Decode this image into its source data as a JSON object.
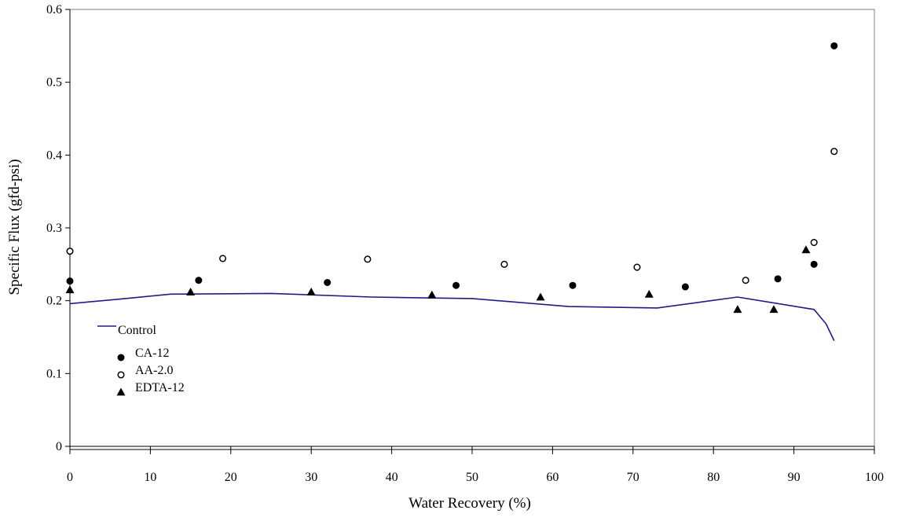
{
  "chart_data": {
    "type": "scatter",
    "title": "",
    "xlabel": "Water Recovery (%)",
    "ylabel": "Specific Flux (gfd-psi)",
    "xlim": [
      0,
      100
    ],
    "ylim": [
      0,
      0.6
    ],
    "xticks": [
      0,
      10,
      20,
      30,
      40,
      50,
      60,
      70,
      80,
      90,
      100
    ],
    "yticks": [
      0,
      0.1,
      0.2,
      0.3,
      0.4,
      0.5,
      0.6
    ],
    "x_tick_labels": [
      "0",
      "10",
      "20",
      "30",
      "40",
      "50",
      "60",
      "70",
      "80",
      "90",
      "100"
    ],
    "y_tick_labels": [
      "0",
      "0.1",
      "0.2",
      "0.3",
      "0.4",
      "0.5",
      "0.6"
    ],
    "grid": false,
    "legend_position": "lower-left",
    "series": [
      {
        "name": "Control",
        "kind": "line",
        "color": "#1c1c8c",
        "points": [
          [
            0,
            0.196
          ],
          [
            6,
            0.202
          ],
          [
            12.5,
            0.209
          ],
          [
            25,
            0.21
          ],
          [
            37.5,
            0.205
          ],
          [
            50,
            0.203
          ],
          [
            62,
            0.192
          ],
          [
            73,
            0.19
          ],
          [
            83,
            0.205
          ],
          [
            92.5,
            0.188
          ],
          [
            94,
            0.168
          ],
          [
            95,
            0.145
          ]
        ]
      },
      {
        "name": "CA-12",
        "kind": "marker",
        "marker": "filled-circle",
        "color": "#000000",
        "points": [
          [
            0,
            0.227
          ],
          [
            16,
            0.228
          ],
          [
            32,
            0.225
          ],
          [
            48,
            0.221
          ],
          [
            62.5,
            0.221
          ],
          [
            76.5,
            0.219
          ],
          [
            88,
            0.23
          ],
          [
            92.5,
            0.25
          ],
          [
            95,
            0.55
          ]
        ]
      },
      {
        "name": "AA-2.0",
        "kind": "marker",
        "marker": "open-circle",
        "color": "#000000",
        "points": [
          [
            0,
            0.268
          ],
          [
            19,
            0.258
          ],
          [
            37,
            0.257
          ],
          [
            54,
            0.25
          ],
          [
            70.5,
            0.246
          ],
          [
            84,
            0.228
          ],
          [
            92.5,
            0.28
          ],
          [
            95,
            0.405
          ]
        ]
      },
      {
        "name": "EDTA-12",
        "kind": "marker",
        "marker": "filled-triangle",
        "color": "#000000",
        "points": [
          [
            0,
            0.215
          ],
          [
            15,
            0.212
          ],
          [
            30,
            0.212
          ],
          [
            45,
            0.208
          ],
          [
            58.5,
            0.205
          ],
          [
            72,
            0.209
          ],
          [
            83,
            0.188
          ],
          [
            87.5,
            0.188
          ],
          [
            91.5,
            0.27
          ]
        ]
      }
    ]
  }
}
